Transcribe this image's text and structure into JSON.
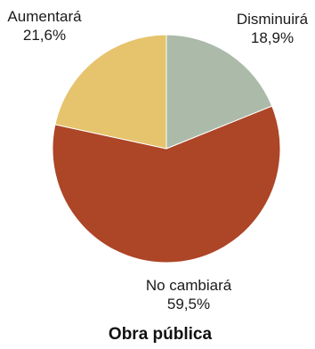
{
  "chart_data": {
    "type": "pie",
    "title": "Obra pública",
    "slices": [
      {
        "label": "Disminuirá",
        "value_label": "18,9%",
        "value": 18.9,
        "color": "#abbaa9"
      },
      {
        "label": "No cambiará",
        "value_label": "59,5%",
        "value": 59.5,
        "color": "#ad4527"
      },
      {
        "label": "Aumentará",
        "value_label": "21,6%",
        "value": 21.6,
        "color": "#e6c46d"
      }
    ]
  }
}
